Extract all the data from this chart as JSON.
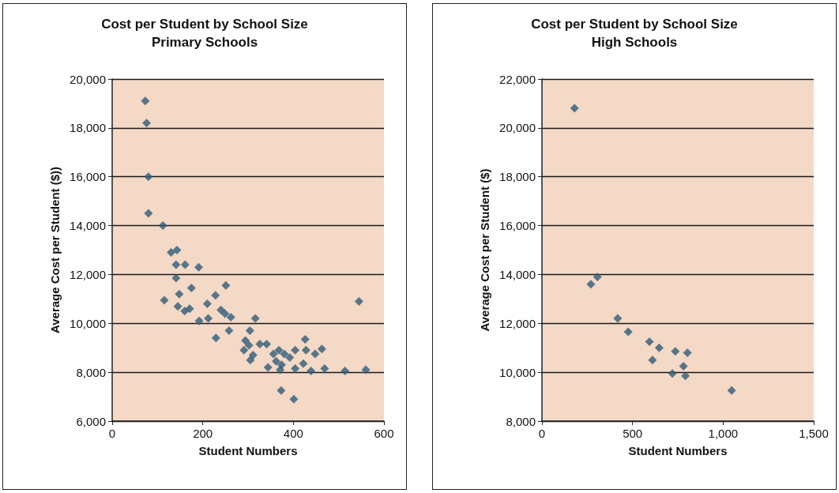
{
  "chart_data": [
    {
      "type": "scatter",
      "title": "Cost per Student by School Size",
      "subtitle": "Primary Schools",
      "xlabel": "Student Numbers",
      "ylabel": "Average Cost per Student ($))",
      "x": [
        73,
        76,
        80,
        80,
        112,
        130,
        143,
        141,
        161,
        191,
        141,
        175,
        251,
        148,
        228,
        115,
        145,
        160,
        171,
        210,
        240,
        249,
        262,
        192,
        212,
        316,
        545,
        258,
        304,
        229,
        426,
        294,
        302,
        326,
        341,
        291,
        311,
        305,
        356,
        368,
        380,
        392,
        404,
        428,
        448,
        463,
        362,
        374,
        371,
        344,
        404,
        422,
        439,
        469,
        514,
        560,
        373,
        401
      ],
      "values": [
        19100,
        18200,
        16000,
        14500,
        14000,
        12900,
        13000,
        12400,
        12400,
        12300,
        11850,
        11450,
        11550,
        11200,
        11150,
        10950,
        10700,
        10500,
        10600,
        10800,
        10550,
        10400,
        10250,
        10100,
        10200,
        10200,
        10900,
        9700,
        9700,
        9400,
        9350,
        9300,
        9100,
        9150,
        9150,
        8900,
        8700,
        8500,
        8750,
        8900,
        8750,
        8600,
        8900,
        8900,
        8750,
        8950,
        8450,
        8300,
        8100,
        8200,
        8150,
        8350,
        8050,
        8150,
        8050,
        8100,
        7250,
        6900
      ],
      "color": "#2f5b78",
      "marker": "diamond",
      "grid": "y",
      "xlim": [
        0,
        600
      ],
      "xticks": [
        0,
        200,
        400,
        600
      ],
      "ylim": [
        6000,
        20000
      ],
      "yticks": [
        {
          "value": 6000,
          "label": "6,000"
        },
        {
          "value": 8000,
          "label": "8,000"
        },
        {
          "value": 10000,
          "label": "10,000"
        },
        {
          "value": 12000,
          "label": "12,000"
        },
        {
          "value": 14000,
          "label": "14,000"
        },
        {
          "value": 16000,
          "label": "16,000"
        },
        {
          "value": 18000,
          "label": "18,000"
        },
        {
          "value": 20000,
          "label": "20,000"
        }
      ]
    },
    {
      "type": "scatter",
      "title": "Cost per Student by School Size",
      "subtitle": "High Schools",
      "xlabel": "Student Numbers",
      "ylabel": "Average Cost per Student ($)",
      "x": [
        180,
        270,
        306,
        418,
        476,
        593,
        647,
        736,
        803,
        610,
        781,
        720,
        792,
        1047
      ],
      "values": [
        20800,
        13600,
        13900,
        12200,
        11650,
        11250,
        11000,
        10850,
        10800,
        10500,
        10250,
        9950,
        9850,
        9250
      ],
      "color": "#2f5b78",
      "marker": "diamond",
      "grid": "y",
      "xlim": [
        0,
        1500
      ],
      "xticks": [
        0,
        500,
        {
          "value": 1000,
          "label": "1,000"
        },
        {
          "value": 1500,
          "label": "1,500"
        }
      ],
      "ylim": [
        8000,
        22000
      ],
      "yticks": [
        {
          "value": 8000,
          "label": "8,000"
        },
        {
          "value": 10000,
          "label": "10,000"
        },
        {
          "value": 12000,
          "label": "12,000"
        },
        {
          "value": 14000,
          "label": "14,000"
        },
        {
          "value": 16000,
          "label": "16,000"
        },
        {
          "value": 18000,
          "label": "18,000"
        },
        {
          "value": 20000,
          "label": "20,000"
        },
        {
          "value": 22000,
          "label": "22,000"
        }
      ]
    }
  ]
}
